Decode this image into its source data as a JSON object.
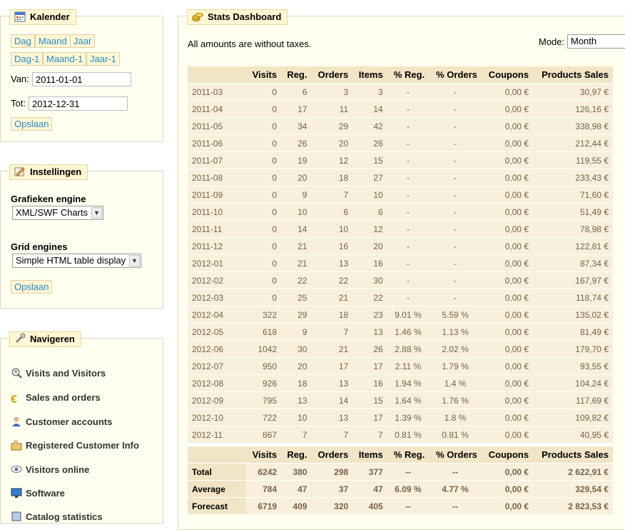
{
  "kalender": {
    "title": "Kalender",
    "buttons_row1": [
      "Dag",
      "Maand",
      "Jaar"
    ],
    "buttons_row2": [
      "Dag-1",
      "Maand-1",
      "Jaar-1"
    ],
    "from_label": "Van:",
    "from_value": "2011-01-01",
    "to_label": "Tot:",
    "to_value": "2012-12-31",
    "save": "Opslaan"
  },
  "instellingen": {
    "title": "Instellingen",
    "graph_label": "Grafieken engine",
    "graph_value": "XML/SWF Charts",
    "grid_label": "Grid engines",
    "grid_value": "Simple HTML table display",
    "save": "Opslaan"
  },
  "navigeren": {
    "title": "Navigeren",
    "items": [
      {
        "label": "Visits and Visitors",
        "icon": "visitors-icon"
      },
      {
        "label": "Sales and orders",
        "icon": "euro-icon"
      },
      {
        "label": "Customer accounts",
        "icon": "customer-icon"
      },
      {
        "label": "Registered Customer Info",
        "icon": "customer-info-icon"
      },
      {
        "label": "Visitors online",
        "icon": "eye-icon"
      },
      {
        "label": "Software",
        "icon": "monitor-icon"
      },
      {
        "label": "Catalog statistics",
        "icon": "catalog-icon"
      }
    ]
  },
  "dashboard": {
    "title": "Stats Dashboard",
    "note": "All amounts are without taxes.",
    "mode_label": "Mode:",
    "mode_value": "Month",
    "columns": [
      "",
      "Visits",
      "Reg.",
      "Orders",
      "Items",
      "% Reg.",
      "% Orders",
      "Coupons",
      "Products Sales"
    ],
    "rows": [
      [
        "2011-03",
        "0",
        "6",
        "3",
        "3",
        "-",
        "-",
        "0,00 €",
        "30,97 €"
      ],
      [
        "2011-04",
        "0",
        "17",
        "11",
        "14",
        "-",
        "-",
        "0,00 €",
        "126,16 €"
      ],
      [
        "2011-05",
        "0",
        "34",
        "29",
        "42",
        "-",
        "-",
        "0,00 €",
        "338,98 €"
      ],
      [
        "2011-06",
        "0",
        "26",
        "20",
        "26",
        "-",
        "-",
        "0,00 €",
        "212,44 €"
      ],
      [
        "2011-07",
        "0",
        "19",
        "12",
        "15",
        "-",
        "-",
        "0,00 €",
        "119,55 €"
      ],
      [
        "2011-08",
        "0",
        "20",
        "18",
        "27",
        "-",
        "-",
        "0,00 €",
        "233,43 €"
      ],
      [
        "2011-09",
        "0",
        "9",
        "7",
        "10",
        "-",
        "-",
        "0,00 €",
        "71,60 €"
      ],
      [
        "2011-10",
        "0",
        "10",
        "6",
        "6",
        "-",
        "-",
        "0,00 €",
        "51,49 €"
      ],
      [
        "2011-11",
        "0",
        "14",
        "10",
        "12",
        "-",
        "-",
        "0,00 €",
        "78,98 €"
      ],
      [
        "2011-12",
        "0",
        "21",
        "16",
        "20",
        "-",
        "-",
        "0,00 €",
        "122,81 €"
      ],
      [
        "2012-01",
        "0",
        "21",
        "13",
        "16",
        "-",
        "-",
        "0,00 €",
        "87,34 €"
      ],
      [
        "2012-02",
        "0",
        "22",
        "22",
        "30",
        "-",
        "-",
        "0,00 €",
        "167,97 €"
      ],
      [
        "2012-03",
        "0",
        "25",
        "21",
        "22",
        "-",
        "-",
        "0,00 €",
        "118,74 €"
      ],
      [
        "2012-04",
        "322",
        "29",
        "18",
        "23",
        "9.01 %",
        "5.59 %",
        "0,00 €",
        "135,02 €"
      ],
      [
        "2012-05",
        "618",
        "9",
        "7",
        "13",
        "1.46 %",
        "1.13 %",
        "0,00 €",
        "81,49 €"
      ],
      [
        "2012-06",
        "1042",
        "30",
        "21",
        "26",
        "2.88 %",
        "2.02 %",
        "0,00 €",
        "179,70 €"
      ],
      [
        "2012-07",
        "950",
        "20",
        "17",
        "17",
        "2.11 %",
        "1.79 %",
        "0,00 €",
        "93,55 €"
      ],
      [
        "2012-08",
        "926",
        "18",
        "13",
        "16",
        "1.94 %",
        "1.4 %",
        "0,00 €",
        "104,24 €"
      ],
      [
        "2012-09",
        "795",
        "13",
        "14",
        "15",
        "1.64 %",
        "1.76 %",
        "0,00 €",
        "117,69 €"
      ],
      [
        "2012-10",
        "722",
        "10",
        "13",
        "17",
        "1.39 %",
        "1.8 %",
        "0,00 €",
        "109,82 €"
      ],
      [
        "2012-11",
        "867",
        "7",
        "7",
        "7",
        "0.81 %",
        "0.81 %",
        "0,00 €",
        "40,95 €"
      ]
    ],
    "totals": [
      [
        "Total",
        "6242",
        "380",
        "298",
        "377",
        "--",
        "--",
        "0,00 €",
        "2 622,91 €"
      ],
      [
        "Average",
        "784",
        "47",
        "37",
        "47",
        "6.09 %",
        "4.77 %",
        "0,00 €",
        "329,54 €"
      ],
      [
        "Forecast",
        "6719",
        "409",
        "320",
        "405",
        "--",
        "--",
        "0,00 €",
        "2 823,53 €"
      ]
    ]
  }
}
